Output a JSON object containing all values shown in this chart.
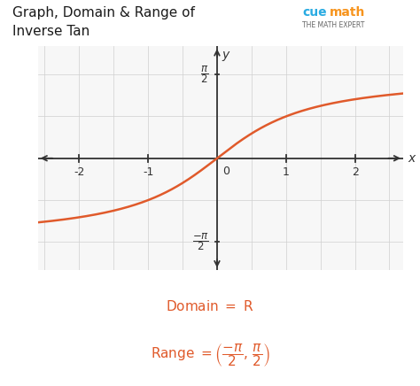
{
  "title_line1": "Graph, Domain & Range of",
  "title_line2": "Inverse Tan",
  "title_fontsize": 11,
  "title_color": "#1a1a1a",
  "curve_color": "#e05a2b",
  "curve_linewidth": 1.8,
  "axis_color": "#333333",
  "grid_color": "#d0d0d0",
  "grid_linewidth": 0.5,
  "xlim": [
    -2.6,
    2.7
  ],
  "ylim": [
    -2.1,
    2.1
  ],
  "pi_half": 1.5707963267948966,
  "bg_color": "#ffffff",
  "plot_bg_color": "#f7f7f7",
  "domain_color": "#e05a2b",
  "font_size_tick": 9,
  "font_size_label": 10,
  "cuemath_blue": "#29abe2",
  "cuemath_orange": "#f7941d",
  "cuemath_gray": "#666666"
}
